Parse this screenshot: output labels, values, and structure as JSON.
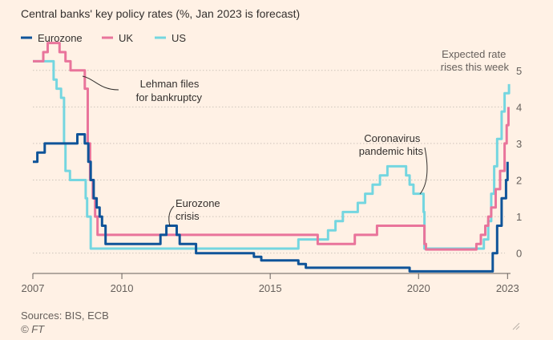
{
  "chart_data": {
    "type": "line",
    "title": "Central banks' key policy rates (%, Jan 2023 is forecast)",
    "xlabel": "",
    "ylabel": "",
    "xlim": [
      2007.0,
      2023.1
    ],
    "ylim": [
      -0.6,
      5.5
    ],
    "x_ticks": [
      2007,
      2010,
      2015,
      2020,
      2023
    ],
    "x_tick_labels": [
      "2007",
      "2010",
      "2015",
      "2020",
      "2023"
    ],
    "y_ticks": [
      0,
      1,
      2,
      3,
      4,
      5
    ],
    "y_tick_labels": [
      "0",
      "1",
      "2",
      "3",
      "4",
      "5"
    ],
    "grid": "horizontal dotted",
    "legend_position": "top-left",
    "series": [
      {
        "name": "Eurozone",
        "color": "#0f5499",
        "points": [
          [
            2007.0,
            2.5
          ],
          [
            2007.15,
            2.5
          ],
          [
            2007.15,
            2.75
          ],
          [
            2007.4,
            2.75
          ],
          [
            2007.4,
            3.0
          ],
          [
            2008.5,
            3.0
          ],
          [
            2008.5,
            3.25
          ],
          [
            2008.75,
            3.25
          ],
          [
            2008.75,
            3.0
          ],
          [
            2008.87,
            3.0
          ],
          [
            2008.87,
            2.5
          ],
          [
            2008.95,
            2.5
          ],
          [
            2008.95,
            2.0
          ],
          [
            2009.05,
            2.0
          ],
          [
            2009.05,
            1.5
          ],
          [
            2009.15,
            1.5
          ],
          [
            2009.15,
            1.25
          ],
          [
            2009.25,
            1.25
          ],
          [
            2009.25,
            1.0
          ],
          [
            2009.33,
            1.0
          ],
          [
            2009.33,
            0.75
          ],
          [
            2009.45,
            0.75
          ],
          [
            2009.45,
            0.25
          ],
          [
            2011.3,
            0.25
          ],
          [
            2011.3,
            0.5
          ],
          [
            2011.5,
            0.5
          ],
          [
            2011.5,
            0.75
          ],
          [
            2011.85,
            0.75
          ],
          [
            2011.85,
            0.5
          ],
          [
            2011.95,
            0.5
          ],
          [
            2011.95,
            0.25
          ],
          [
            2012.5,
            0.25
          ],
          [
            2012.5,
            0.0
          ],
          [
            2014.45,
            0.0
          ],
          [
            2014.45,
            -0.1
          ],
          [
            2014.7,
            -0.1
          ],
          [
            2014.7,
            -0.2
          ],
          [
            2015.95,
            -0.2
          ],
          [
            2015.95,
            -0.3
          ],
          [
            2016.2,
            -0.3
          ],
          [
            2016.2,
            -0.4
          ],
          [
            2019.7,
            -0.4
          ],
          [
            2019.7,
            -0.5
          ],
          [
            2022.5,
            -0.5
          ],
          [
            2022.5,
            0.0
          ],
          [
            2022.65,
            0.0
          ],
          [
            2022.65,
            0.75
          ],
          [
            2022.8,
            0.75
          ],
          [
            2022.8,
            1.5
          ],
          [
            2022.95,
            1.5
          ],
          [
            2022.95,
            2.0
          ],
          [
            2023.0,
            2.0
          ],
          [
            2023.0,
            2.5
          ]
        ]
      },
      {
        "name": "UK",
        "color": "#e9749b",
        "points": [
          [
            2007.0,
            5.25
          ],
          [
            2007.35,
            5.25
          ],
          [
            2007.35,
            5.5
          ],
          [
            2007.5,
            5.5
          ],
          [
            2007.5,
            5.75
          ],
          [
            2007.9,
            5.75
          ],
          [
            2007.9,
            5.5
          ],
          [
            2008.1,
            5.5
          ],
          [
            2008.1,
            5.25
          ],
          [
            2008.27,
            5.25
          ],
          [
            2008.27,
            5.0
          ],
          [
            2008.75,
            5.0
          ],
          [
            2008.75,
            4.5
          ],
          [
            2008.85,
            4.5
          ],
          [
            2008.85,
            3.0
          ],
          [
            2008.93,
            3.0
          ],
          [
            2008.93,
            2.0
          ],
          [
            2009.02,
            2.0
          ],
          [
            2009.02,
            1.5
          ],
          [
            2009.1,
            1.5
          ],
          [
            2009.1,
            1.0
          ],
          [
            2009.18,
            1.0
          ],
          [
            2009.18,
            0.5
          ],
          [
            2016.6,
            0.5
          ],
          [
            2016.6,
            0.25
          ],
          [
            2017.85,
            0.25
          ],
          [
            2017.85,
            0.5
          ],
          [
            2018.6,
            0.5
          ],
          [
            2018.6,
            0.75
          ],
          [
            2020.2,
            0.75
          ],
          [
            2020.2,
            0.25
          ],
          [
            2020.25,
            0.25
          ],
          [
            2020.25,
            0.1
          ],
          [
            2021.95,
            0.1
          ],
          [
            2021.95,
            0.25
          ],
          [
            2022.1,
            0.25
          ],
          [
            2022.1,
            0.5
          ],
          [
            2022.25,
            0.5
          ],
          [
            2022.25,
            0.75
          ],
          [
            2022.35,
            0.75
          ],
          [
            2022.35,
            1.0
          ],
          [
            2022.45,
            1.0
          ],
          [
            2022.45,
            1.25
          ],
          [
            2022.6,
            1.25
          ],
          [
            2022.6,
            1.75
          ],
          [
            2022.75,
            1.75
          ],
          [
            2022.75,
            2.25
          ],
          [
            2022.9,
            2.25
          ],
          [
            2022.9,
            3.0
          ],
          [
            2022.97,
            3.0
          ],
          [
            2022.97,
            3.5
          ],
          [
            2023.03,
            3.5
          ],
          [
            2023.03,
            4.0
          ]
        ]
      },
      {
        "name": "US",
        "color": "#74d6e0",
        "points": [
          [
            2007.0,
            5.25
          ],
          [
            2007.7,
            5.25
          ],
          [
            2007.7,
            4.75
          ],
          [
            2007.8,
            4.75
          ],
          [
            2007.8,
            4.5
          ],
          [
            2007.95,
            4.5
          ],
          [
            2007.95,
            4.25
          ],
          [
            2008.05,
            4.25
          ],
          [
            2008.05,
            3.0
          ],
          [
            2008.1,
            3.0
          ],
          [
            2008.1,
            2.25
          ],
          [
            2008.25,
            2.25
          ],
          [
            2008.25,
            2.0
          ],
          [
            2008.78,
            2.0
          ],
          [
            2008.78,
            1.5
          ],
          [
            2008.83,
            1.5
          ],
          [
            2008.83,
            1.0
          ],
          [
            2008.95,
            1.0
          ],
          [
            2008.95,
            0.125
          ],
          [
            2015.95,
            0.125
          ],
          [
            2015.95,
            0.375
          ],
          [
            2016.95,
            0.375
          ],
          [
            2016.95,
            0.625
          ],
          [
            2017.2,
            0.625
          ],
          [
            2017.2,
            0.875
          ],
          [
            2017.45,
            0.875
          ],
          [
            2017.45,
            1.125
          ],
          [
            2017.95,
            1.125
          ],
          [
            2017.95,
            1.375
          ],
          [
            2018.2,
            1.375
          ],
          [
            2018.2,
            1.625
          ],
          [
            2018.45,
            1.625
          ],
          [
            2018.45,
            1.875
          ],
          [
            2018.7,
            1.875
          ],
          [
            2018.7,
            2.125
          ],
          [
            2018.95,
            2.125
          ],
          [
            2018.95,
            2.375
          ],
          [
            2019.58,
            2.375
          ],
          [
            2019.58,
            2.125
          ],
          [
            2019.7,
            2.125
          ],
          [
            2019.7,
            1.875
          ],
          [
            2019.83,
            1.875
          ],
          [
            2019.83,
            1.625
          ],
          [
            2020.17,
            1.625
          ],
          [
            2020.17,
            1.125
          ],
          [
            2020.2,
            1.125
          ],
          [
            2020.2,
            0.125
          ],
          [
            2022.2,
            0.125
          ],
          [
            2022.2,
            0.375
          ],
          [
            2022.35,
            0.375
          ],
          [
            2022.35,
            0.875
          ],
          [
            2022.45,
            0.875
          ],
          [
            2022.45,
            1.625
          ],
          [
            2022.55,
            1.625
          ],
          [
            2022.55,
            2.375
          ],
          [
            2022.65,
            2.375
          ],
          [
            2022.65,
            3.125
          ],
          [
            2022.8,
            3.125
          ],
          [
            2022.8,
            3.875
          ],
          [
            2022.9,
            3.875
          ],
          [
            2022.9,
            4.375
          ],
          [
            2023.05,
            4.375
          ],
          [
            2023.05,
            4.625
          ]
        ]
      }
    ],
    "annotations": [
      {
        "name": "lehman",
        "lines": [
          "Lehman files",
          "for bankruptcy"
        ]
      },
      {
        "name": "eurozone-crisis",
        "lines": [
          "Eurozone",
          "crisis"
        ]
      },
      {
        "name": "coronavirus",
        "lines": [
          "Coronavirus",
          "pandemic hits"
        ]
      },
      {
        "name": "expected-rate",
        "lines": [
          "Expected rate",
          "rises this week"
        ]
      }
    ],
    "source": "Sources: BIS, ECB",
    "credit": "© FT"
  }
}
